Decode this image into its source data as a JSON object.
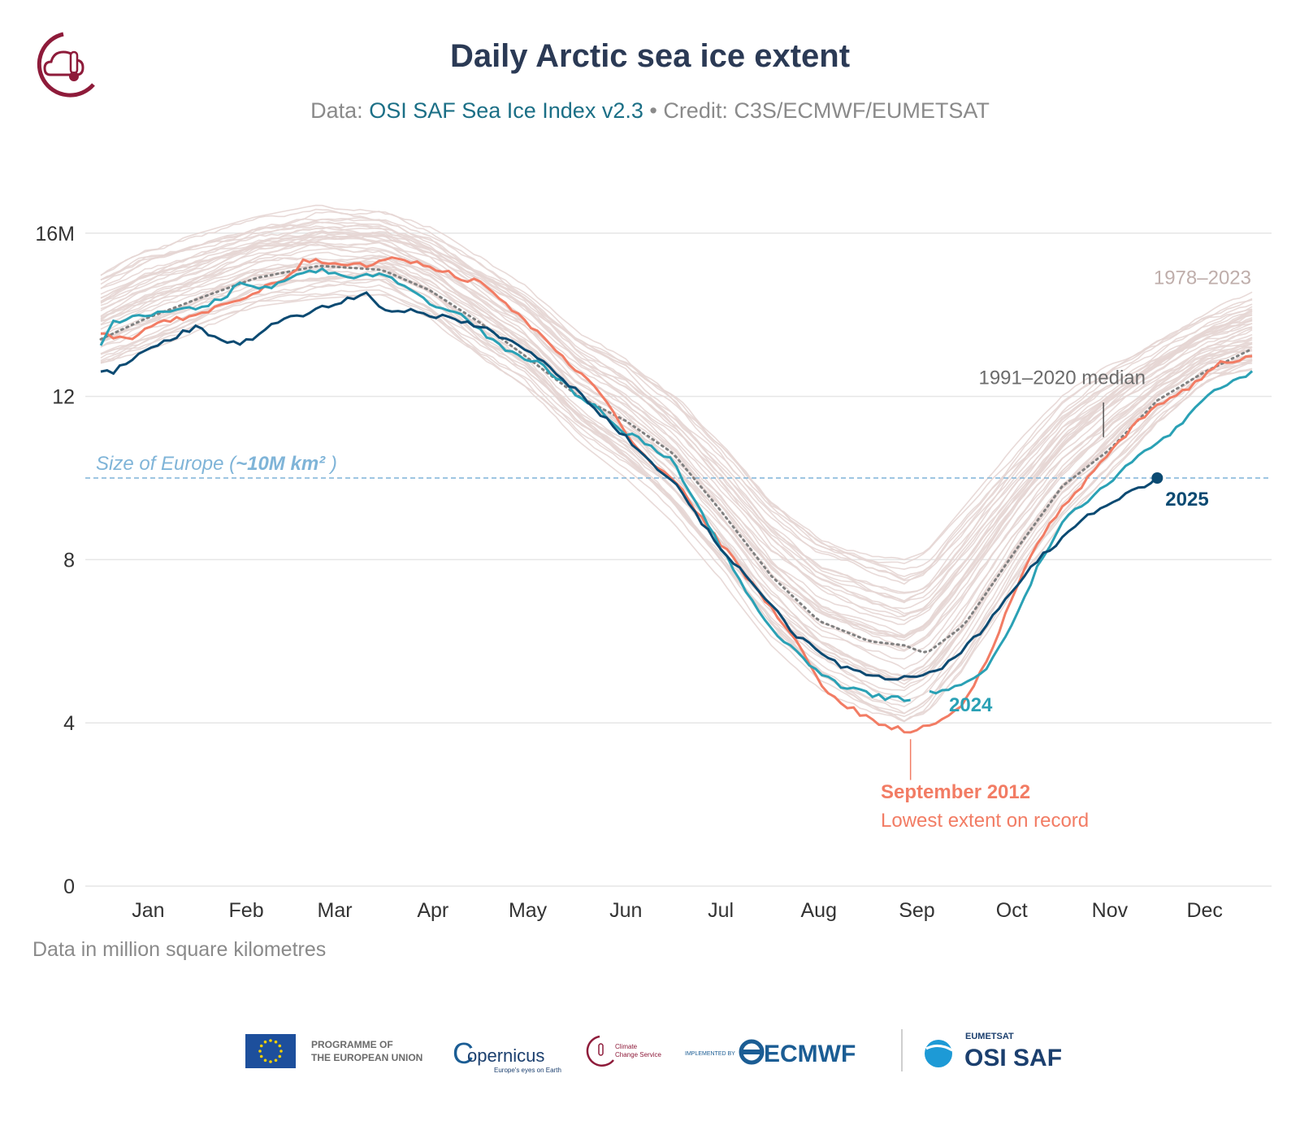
{
  "header": {
    "title": "Daily Arctic sea ice extent",
    "subtitle_prefix": "Data: ",
    "subtitle_link": "OSI SAF Sea Ice Index v2.3",
    "subtitle_suffix": " • Credit: C3S/ECMWF/EUMETSAT"
  },
  "footer": {
    "units_note": "Data in million square kilometres",
    "logos": {
      "eu_line1": "PROGRAMME OF",
      "eu_line2": "THE EUROPEAN UNION",
      "copernicus": "opernicus",
      "copernicus_c": "C",
      "copernicus_tagline": "Europe's eyes on Earth",
      "c3s_line1": "Climate",
      "c3s_line2": "Change Service",
      "implemented_by": "IMPLEMENTED BY",
      "ecmwf": "ECMWF",
      "eumetsat": "EUMETSAT",
      "osisaf": "OSI SAF"
    }
  },
  "colors": {
    "title": "#2b3a55",
    "historical": "#e6d6d4",
    "median": "#808080",
    "y2012": "#f27c64",
    "y2024": "#2aa1b5",
    "y2025": "#0b4a72",
    "europe": "#7fb4d8",
    "grid": "#e6e6e6"
  },
  "chart_data": {
    "type": "line",
    "title": "Daily Arctic sea ice extent",
    "ylabel": "Data in million square kilometres",
    "ylim": [
      0,
      17
    ],
    "yticks": [
      0,
      4,
      8,
      12,
      16
    ],
    "ytick_labels": [
      "0",
      "4",
      "8",
      "12",
      "16M"
    ],
    "x_unit": "day of year",
    "xlim": [
      1,
      366
    ],
    "months": [
      {
        "label": "Jan",
        "day": 1
      },
      {
        "label": "Feb",
        "day": 32
      },
      {
        "label": "Mar",
        "day": 60
      },
      {
        "label": "Apr",
        "day": 91
      },
      {
        "label": "May",
        "day": 121
      },
      {
        "label": "Jun",
        "day": 152
      },
      {
        "label": "Jul",
        "day": 182
      },
      {
        "label": "Aug",
        "day": 213
      },
      {
        "label": "Sep",
        "day": 244
      },
      {
        "label": "Oct",
        "day": 274
      },
      {
        "label": "Nov",
        "day": 305
      },
      {
        "label": "Dec",
        "day": 335
      }
    ],
    "reference_line": {
      "value": 10,
      "label_pre": "Size of Europe (",
      "label_bold": "~10M km²",
      "label_post": " )"
    },
    "historical_band": {
      "label": "1978–2023",
      "count": 46,
      "lower": [
        [
          1,
          12.8
        ],
        [
          15,
          13.2
        ],
        [
          32,
          13.7
        ],
        [
          50,
          14.3
        ],
        [
          70,
          14.5
        ],
        [
          90,
          14.6
        ],
        [
          105,
          14.0
        ],
        [
          121,
          13.0
        ],
        [
          135,
          12.3
        ],
        [
          152,
          11.0
        ],
        [
          167,
          10.1
        ],
        [
          182,
          9.0
        ],
        [
          197,
          7.6
        ],
        [
          213,
          6.0
        ],
        [
          228,
          4.9
        ],
        [
          244,
          4.2
        ],
        [
          255,
          3.9
        ],
        [
          262,
          4.2
        ],
        [
          274,
          5.4
        ],
        [
          290,
          7.4
        ],
        [
          305,
          9.0
        ],
        [
          320,
          10.2
        ],
        [
          335,
          11.4
        ],
        [
          350,
          12.3
        ],
        [
          366,
          12.6
        ]
      ],
      "upper": [
        [
          1,
          14.9
        ],
        [
          15,
          15.5
        ],
        [
          32,
          15.9
        ],
        [
          50,
          16.3
        ],
        [
          70,
          16.6
        ],
        [
          90,
          16.5
        ],
        [
          105,
          16.1
        ],
        [
          121,
          15.4
        ],
        [
          135,
          14.7
        ],
        [
          152,
          13.5
        ],
        [
          167,
          12.9
        ],
        [
          182,
          12.0
        ],
        [
          197,
          10.8
        ],
        [
          213,
          9.4
        ],
        [
          228,
          8.5
        ],
        [
          244,
          8.1
        ],
        [
          255,
          7.9
        ],
        [
          262,
          8.1
        ],
        [
          274,
          9.2
        ],
        [
          290,
          10.7
        ],
        [
          305,
          12.0
        ],
        [
          320,
          12.8
        ],
        [
          335,
          13.4
        ],
        [
          350,
          14.0
        ],
        [
          366,
          14.5
        ]
      ]
    },
    "series": [
      {
        "name": "1991–2020 median",
        "style": "dotted",
        "points": [
          [
            1,
            13.4
          ],
          [
            15,
            13.9
          ],
          [
            32,
            14.4
          ],
          [
            50,
            14.9
          ],
          [
            70,
            15.2
          ],
          [
            90,
            15.1
          ],
          [
            105,
            14.6
          ],
          [
            121,
            13.8
          ],
          [
            135,
            13.0
          ],
          [
            152,
            12.0
          ],
          [
            167,
            11.4
          ],
          [
            182,
            10.6
          ],
          [
            197,
            9.2
          ],
          [
            213,
            7.6
          ],
          [
            228,
            6.5
          ],
          [
            244,
            6.0
          ],
          [
            255,
            5.9
          ],
          [
            262,
            5.7
          ],
          [
            274,
            6.4
          ],
          [
            290,
            8.2
          ],
          [
            305,
            9.8
          ],
          [
            320,
            10.7
          ],
          [
            335,
            11.9
          ],
          [
            350,
            12.6
          ],
          [
            366,
            13.2
          ]
        ]
      },
      {
        "name": "September 2012",
        "label_line1": "September 2012",
        "label_line2": "Lowest extent on record",
        "min_day": 257,
        "points": [
          [
            1,
            13.5
          ],
          [
            10,
            13.4
          ],
          [
            20,
            13.8
          ],
          [
            32,
            14.0
          ],
          [
            45,
            14.4
          ],
          [
            60,
            14.9
          ],
          [
            65,
            15.3
          ],
          [
            75,
            15.3
          ],
          [
            85,
            15.2
          ],
          [
            95,
            15.4
          ],
          [
            105,
            15.2
          ],
          [
            115,
            14.9
          ],
          [
            121,
            14.8
          ],
          [
            130,
            14.2
          ],
          [
            140,
            13.5
          ],
          [
            152,
            12.6
          ],
          [
            160,
            12.0
          ],
          [
            167,
            11.1
          ],
          [
            175,
            10.4
          ],
          [
            182,
            10.0
          ],
          [
            190,
            9.1
          ],
          [
            197,
            8.4
          ],
          [
            205,
            7.6
          ],
          [
            213,
            6.8
          ],
          [
            220,
            6.1
          ],
          [
            228,
            5.0
          ],
          [
            235,
            4.5
          ],
          [
            244,
            4.1
          ],
          [
            250,
            3.9
          ],
          [
            257,
            3.8
          ],
          [
            262,
            3.9
          ],
          [
            268,
            4.1
          ],
          [
            274,
            4.5
          ],
          [
            281,
            5.5
          ],
          [
            290,
            7.2
          ],
          [
            297,
            8.4
          ],
          [
            305,
            9.3
          ],
          [
            312,
            9.9
          ],
          [
            320,
            10.6
          ],
          [
            328,
            11.3
          ],
          [
            335,
            11.8
          ],
          [
            345,
            12.2
          ],
          [
            355,
            12.8
          ],
          [
            366,
            13.0
          ]
        ]
      },
      {
        "name": "2024",
        "label": "2024",
        "gap": [
          257,
          262
        ],
        "points": [
          [
            1,
            13.3
          ],
          [
            5,
            13.8
          ],
          [
            15,
            14.0
          ],
          [
            32,
            14.2
          ],
          [
            40,
            14.4
          ],
          [
            45,
            14.8
          ],
          [
            52,
            14.6
          ],
          [
            60,
            14.9
          ],
          [
            70,
            15.1
          ],
          [
            80,
            14.9
          ],
          [
            90,
            15.0
          ],
          [
            98,
            14.6
          ],
          [
            105,
            14.3
          ],
          [
            115,
            14.0
          ],
          [
            121,
            13.6
          ],
          [
            130,
            13.1
          ],
          [
            140,
            12.8
          ],
          [
            152,
            12.0
          ],
          [
            160,
            11.6
          ],
          [
            167,
            11.1
          ],
          [
            175,
            10.8
          ],
          [
            182,
            10.4
          ],
          [
            190,
            9.3
          ],
          [
            197,
            8.3
          ],
          [
            205,
            7.2
          ],
          [
            213,
            6.3
          ],
          [
            220,
            5.8
          ],
          [
            228,
            5.2
          ],
          [
            235,
            4.9
          ],
          [
            244,
            4.7
          ],
          [
            250,
            4.6
          ],
          [
            257,
            4.6
          ],
          [
            262,
            4.7
          ],
          [
            268,
            4.8
          ],
          [
            274,
            5.0
          ],
          [
            281,
            5.3
          ],
          [
            290,
            6.5
          ],
          [
            297,
            7.8
          ],
          [
            305,
            8.9
          ],
          [
            312,
            9.4
          ],
          [
            320,
            9.9
          ],
          [
            328,
            10.5
          ],
          [
            335,
            10.9
          ],
          [
            343,
            11.3
          ],
          [
            350,
            12.0
          ],
          [
            358,
            12.3
          ],
          [
            366,
            12.6
          ]
        ]
      },
      {
        "name": "2025",
        "label": "2025",
        "end_day": 335,
        "points": [
          [
            1,
            12.6
          ],
          [
            5,
            12.6
          ],
          [
            12,
            13.0
          ],
          [
            20,
            13.3
          ],
          [
            28,
            13.6
          ],
          [
            32,
            13.7
          ],
          [
            38,
            13.4
          ],
          [
            45,
            13.3
          ],
          [
            50,
            13.4
          ],
          [
            55,
            13.8
          ],
          [
            60,
            13.9
          ],
          [
            65,
            14.0
          ],
          [
            72,
            14.2
          ],
          [
            80,
            14.4
          ],
          [
            85,
            14.5
          ],
          [
            88,
            14.3
          ],
          [
            92,
            14.1
          ],
          [
            100,
            14.1
          ],
          [
            105,
            14.0
          ],
          [
            112,
            13.9
          ],
          [
            121,
            13.7
          ],
          [
            130,
            13.4
          ],
          [
            140,
            12.9
          ],
          [
            152,
            12.1
          ],
          [
            160,
            11.5
          ],
          [
            167,
            11.0
          ],
          [
            175,
            10.4
          ],
          [
            182,
            9.9
          ],
          [
            190,
            9.0
          ],
          [
            197,
            8.3
          ],
          [
            205,
            7.6
          ],
          [
            213,
            6.9
          ],
          [
            220,
            6.2
          ],
          [
            228,
            5.8
          ],
          [
            235,
            5.4
          ],
          [
            244,
            5.2
          ],
          [
            250,
            5.1
          ],
          [
            257,
            5.1
          ],
          [
            262,
            5.2
          ],
          [
            268,
            5.4
          ],
          [
            274,
            5.8
          ],
          [
            281,
            6.4
          ],
          [
            290,
            7.3
          ],
          [
            297,
            8.0
          ],
          [
            305,
            8.5
          ],
          [
            312,
            9.0
          ],
          [
            320,
            9.4
          ],
          [
            328,
            9.7
          ],
          [
            335,
            10.0
          ]
        ]
      }
    ]
  }
}
